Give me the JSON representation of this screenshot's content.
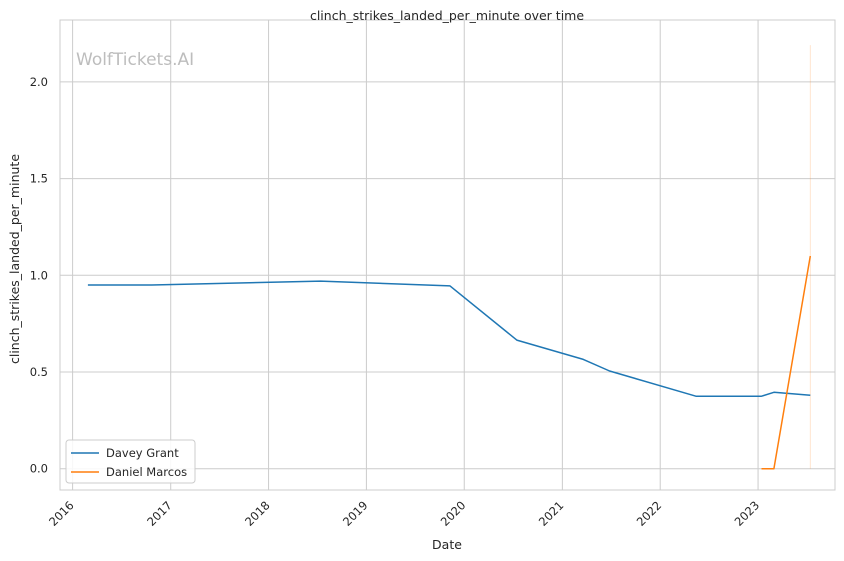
{
  "chart_data": {
    "type": "line",
    "title": "clinch_strikes_landed_per_minute over time",
    "xlabel": "Date",
    "ylabel": "clinch_strikes_landed_per_minute",
    "watermark": "WolfTickets.AI",
    "x_tick_labels": [
      "2016",
      "2017",
      "2018",
      "2019",
      "2020",
      "2021",
      "2022",
      "2023"
    ],
    "y_tick_labels": [
      "0.0",
      "0.5",
      "1.0",
      "1.5",
      "2.0"
    ],
    "xlim": [
      "2015-11-15",
      "2023-10-15"
    ],
    "ylim": [
      -0.11,
      2.32
    ],
    "grid": true,
    "legend_position": "lower-left",
    "series": [
      {
        "name": "Davey Grant",
        "color": "#1f77b4",
        "points": [
          {
            "x": "2016-02-27",
            "y": 0.95
          },
          {
            "x": "2016-10-22",
            "y": 0.95
          },
          {
            "x": "2018-07-14",
            "y": 0.97
          },
          {
            "x": "2019-11-09",
            "y": 0.945
          },
          {
            "x": "2020-07-15",
            "y": 0.665
          },
          {
            "x": "2021-03-20",
            "y": 0.565
          },
          {
            "x": "2021-06-26",
            "y": 0.505
          },
          {
            "x": "2022-05-14",
            "y": 0.375
          },
          {
            "x": "2023-01-14",
            "y": 0.375
          },
          {
            "x": "2023-03-01",
            "y": 0.395
          },
          {
            "x": "2023-07-15",
            "y": 0.38
          }
        ]
      },
      {
        "name": "Daniel Marcos",
        "color": "#ff7f0e",
        "points": [
          {
            "x": "2023-01-14",
            "y": 0.0
          },
          {
            "x": "2023-03-01",
            "y": 0.0
          },
          {
            "x": "2023-07-15",
            "y": 1.1
          }
        ],
        "band": {
          "x": "2023-07-15",
          "ymin": 0.0,
          "ymax": 2.19
        }
      }
    ]
  }
}
